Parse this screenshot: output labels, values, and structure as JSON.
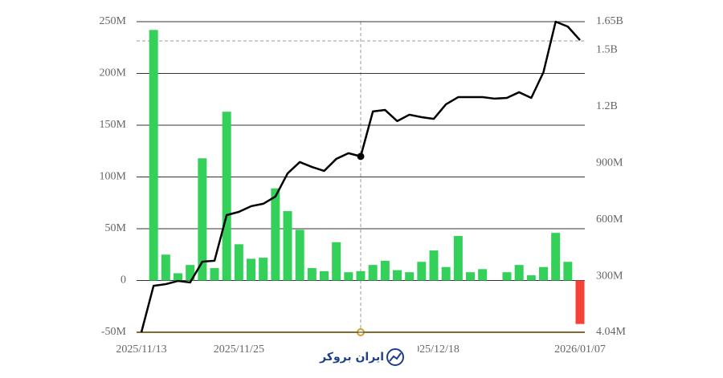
{
  "chart_data": {
    "type": "bar-line",
    "categories": [
      "2025/11/13",
      null,
      null,
      null,
      null,
      null,
      null,
      null,
      "2025/11/25",
      null,
      null,
      null,
      null,
      null,
      null,
      null,
      null,
      null,
      null,
      null,
      null,
      null,
      null,
      null,
      "2025/12/18",
      null,
      null,
      null,
      null,
      null,
      null,
      null,
      null,
      null,
      null,
      null,
      "2026/01/07"
    ],
    "series": [
      {
        "type": "bar",
        "color": "#33d15a",
        "negative_color": "#f44336",
        "values": [
          null,
          242000000,
          25000000,
          7000000,
          15000000,
          118000000,
          12000000,
          163000000,
          35000000,
          21000000,
          22000000,
          89000000,
          67000000,
          49000000,
          12000000,
          9000000,
          37000000,
          8000000,
          9000000,
          15000000,
          19000000,
          10000000,
          8000000,
          18000000,
          29000000,
          13000000,
          43000000,
          8000000,
          11000000,
          0,
          8000000,
          15000000,
          5000000,
          13000000,
          46000000,
          18000000,
          -42000000
        ]
      },
      {
        "type": "line",
        "axis": "y2",
        "color": "#000000",
        "values": [
          4040000,
          250000000,
          259000000,
          276000000,
          268000000,
          378000000,
          383000000,
          625000000,
          642000000,
          672000000,
          685000000,
          723000000,
          846000000,
          906000000,
          880000000,
          859000000,
          923000000,
          953000000,
          936000000,
          1174000000,
          1182000000,
          1123000000,
          1157000000,
          1144000000,
          1135000000,
          1212000000,
          1250000000,
          1250000000,
          1250000000,
          1242000000,
          1246000000,
          1276000000,
          1246000000,
          1382000000,
          1650000000,
          1624000000,
          1552000000
        ]
      }
    ],
    "ylim": [
      -50000000,
      250000000
    ],
    "yticks": [
      {
        "value": -50000000,
        "label": "-50M"
      },
      {
        "value": 0,
        "label": "0"
      },
      {
        "value": 50000000,
        "label": "50M"
      },
      {
        "value": 100000000,
        "label": "100M"
      },
      {
        "value": 150000000,
        "label": "150M"
      },
      {
        "value": 200000000,
        "label": "200M"
      },
      {
        "value": 250000000,
        "label": "250M"
      }
    ],
    "y2lim": [
      4040000,
      1650000000
    ],
    "y2ticks": [
      {
        "value": 4040000,
        "label": "4.04M"
      },
      {
        "value": 300000000,
        "label": "300M"
      },
      {
        "value": 600000000,
        "label": "600M"
      },
      {
        "value": 900000000,
        "label": "900M"
      },
      {
        "value": 1200000000,
        "label": "1.2B"
      },
      {
        "value": 1500000000,
        "label": "1.5B"
      },
      {
        "value": 1650000000,
        "label": "1.65B"
      }
    ],
    "grid": true,
    "watermark": "ایران بروکر"
  }
}
